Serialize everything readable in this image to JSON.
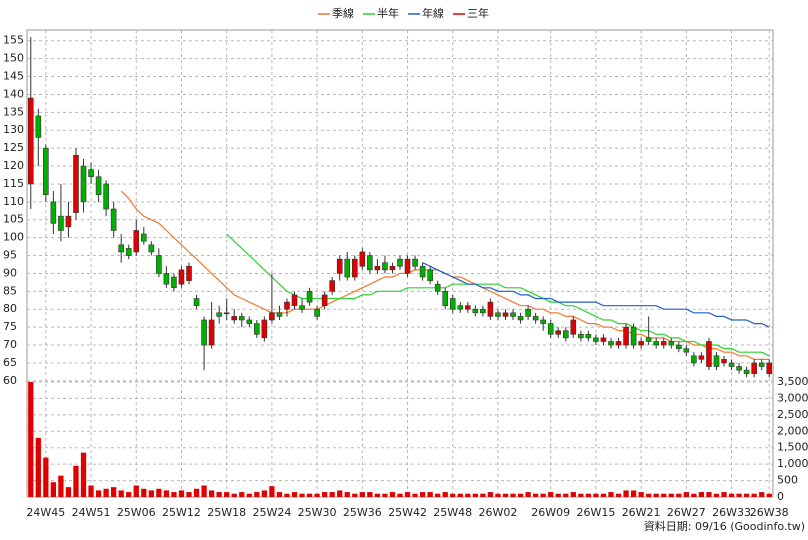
{
  "chart_data": {
    "type": "candlestick",
    "categories": [
      null,
      null,
      "24W45",
      null,
      null,
      null,
      null,
      null,
      "24W51",
      null,
      null,
      null,
      null,
      null,
      "25W06",
      null,
      null,
      null,
      null,
      null,
      "25W12",
      null,
      null,
      null,
      null,
      null,
      "25W18",
      null,
      null,
      null,
      null,
      null,
      "25W24",
      null,
      null,
      null,
      null,
      null,
      "25W30",
      null,
      null,
      null,
      null,
      null,
      "25W36",
      null,
      null,
      null,
      null,
      null,
      "25W42",
      null,
      null,
      null,
      null,
      null,
      "25W48",
      null,
      null,
      null,
      null,
      null,
      "26W02",
      null,
      null,
      null,
      null,
      null,
      null,
      "26W09",
      null,
      null,
      null,
      null,
      null,
      "26W15",
      null,
      null,
      null,
      null,
      null,
      "26W21",
      null,
      null,
      null,
      null,
      null,
      "26W27",
      null,
      null,
      null,
      null,
      null,
      "26W33",
      null,
      null,
      null,
      null,
      "26W38"
    ],
    "open": [
      115,
      134,
      125,
      110,
      106,
      103,
      107,
      120,
      119,
      117,
      115,
      108,
      98,
      97,
      96,
      101,
      98,
      95,
      90,
      89,
      87,
      88,
      83,
      77,
      70,
      79,
      79,
      77,
      78,
      77,
      76,
      72,
      77,
      79,
      80,
      81,
      81,
      85,
      80,
      81,
      85,
      90,
      94,
      89,
      92,
      95,
      91,
      93,
      91,
      94,
      90,
      94,
      92,
      91,
      87,
      85,
      83,
      81,
      80,
      80,
      80,
      78,
      79,
      78,
      79,
      78,
      80,
      78,
      77,
      76,
      73,
      74,
      73,
      73,
      73,
      72,
      71,
      71,
      70,
      70,
      75,
      70,
      72,
      71,
      70,
      71,
      70,
      69,
      67,
      66,
      64,
      67,
      65,
      65,
      64,
      63,
      62,
      65,
      62
    ],
    "high": [
      156,
      136,
      126,
      113,
      115,
      110,
      125,
      122,
      121,
      119,
      116,
      110,
      101,
      98,
      105,
      103,
      99,
      97,
      92,
      90,
      92,
      93,
      84,
      78,
      82,
      81,
      83,
      80,
      79,
      78,
      77,
      78,
      90,
      81,
      83,
      85,
      83,
      86,
      81,
      85,
      89,
      95,
      96,
      95,
      97,
      96,
      94,
      95,
      93,
      95,
      95,
      95,
      93,
      92,
      88,
      86,
      84,
      82,
      82,
      81,
      81,
      83,
      80,
      80,
      80,
      79,
      81,
      79,
      78,
      77,
      75,
      75,
      78,
      74,
      74,
      73,
      73,
      72,
      72,
      76,
      76,
      72,
      78,
      72,
      72,
      72,
      71,
      70,
      68,
      68,
      72,
      68,
      67,
      66,
      65,
      64,
      66,
      66,
      66
    ],
    "low": [
      108,
      120,
      110,
      101,
      99,
      100,
      105,
      107,
      115,
      110,
      106,
      100,
      93,
      94,
      95,
      98,
      95,
      89,
      86,
      85,
      86,
      87,
      80,
      63,
      69,
      76,
      77,
      76,
      75,
      75,
      72,
      71,
      76,
      77,
      78,
      80,
      79,
      81,
      77,
      80,
      84,
      88,
      88,
      88,
      91,
      90,
      90,
      90,
      90,
      91,
      89,
      91,
      88,
      87,
      84,
      80,
      79,
      79,
      79,
      78,
      78,
      77,
      77,
      77,
      77,
      76,
      77,
      76,
      74,
      72,
      72,
      71,
      72,
      71,
      71,
      70,
      70,
      69,
      69,
      69,
      69,
      69,
      70,
      69,
      69,
      69,
      68,
      67,
      64,
      65,
      63,
      63,
      64,
      63,
      62,
      61,
      61,
      63,
      61
    ],
    "close": [
      139,
      128,
      112,
      104,
      102,
      106,
      123,
      110,
      117,
      112,
      108,
      102,
      96,
      95,
      102,
      99,
      96,
      90,
      87,
      86,
      91,
      92,
      81,
      70,
      77,
      78,
      79,
      78,
      77,
      76,
      73,
      77,
      79,
      78,
      82,
      84,
      80,
      82,
      78,
      84,
      88,
      94,
      89,
      94,
      96,
      91,
      92,
      91,
      92,
      92,
      94,
      92,
      89,
      88,
      85,
      81,
      80,
      80,
      81,
      79,
      79,
      82,
      78,
      79,
      78,
      77,
      78,
      77,
      76,
      73,
      74,
      72,
      77,
      72,
      72,
      71,
      72,
      70,
      71,
      75,
      70,
      71,
      71,
      70,
      71,
      70,
      69,
      68,
      65,
      67,
      71,
      64,
      66,
      64,
      63,
      62,
      65,
      64,
      65
    ],
    "up_color": "#e00000",
    "down_color": "#00b000",
    "volume": {
      "color": "#e00000",
      "values": [
        3500,
        1800,
        1200,
        450,
        650,
        300,
        950,
        1350,
        350,
        200,
        250,
        300,
        200,
        150,
        350,
        250,
        200,
        250,
        200,
        150,
        200,
        150,
        250,
        350,
        200,
        150,
        150,
        100,
        150,
        100,
        150,
        200,
        330,
        150,
        100,
        150,
        100,
        100,
        100,
        150,
        150,
        200,
        150,
        100,
        150,
        150,
        100,
        100,
        150,
        100,
        150,
        100,
        150,
        150,
        100,
        150,
        100,
        100,
        100,
        100,
        100,
        150,
        100,
        100,
        100,
        100,
        150,
        100,
        100,
        150,
        100,
        100,
        150,
        100,
        100,
        100,
        100,
        150,
        100,
        200,
        200,
        150,
        100,
        100,
        100,
        100,
        100,
        150,
        100,
        150,
        150,
        100,
        150,
        100,
        100,
        100,
        100,
        150,
        100
      ]
    },
    "series": [
      {
        "name": "季線",
        "color": "#f07830",
        "values": [
          null,
          null,
          null,
          null,
          null,
          null,
          null,
          null,
          null,
          null,
          null,
          null,
          113,
          111,
          108,
          106,
          105,
          104,
          102,
          100,
          98,
          96,
          94,
          92,
          90,
          88,
          86,
          84,
          83,
          82,
          81,
          80,
          79,
          79,
          79,
          80,
          80,
          80,
          80,
          81,
          82,
          83,
          84,
          85,
          86,
          87,
          88,
          89,
          89,
          90,
          90,
          91,
          91,
          91,
          91,
          90,
          89,
          89,
          88,
          87,
          86,
          85,
          84,
          83,
          82,
          81,
          81,
          80,
          80,
          79,
          79,
          78,
          78,
          77,
          76,
          76,
          75,
          75,
          74,
          74,
          73,
          73,
          72,
          72,
          72,
          71,
          71,
          71,
          70,
          70,
          69,
          69,
          68,
          68,
          67,
          67,
          66,
          66,
          66
        ]
      },
      {
        "name": "半年",
        "color": "#30d030",
        "values": [
          null,
          null,
          null,
          null,
          null,
          null,
          null,
          null,
          null,
          null,
          null,
          null,
          null,
          null,
          null,
          null,
          null,
          null,
          null,
          null,
          null,
          null,
          null,
          null,
          null,
          null,
          101,
          99,
          97,
          95,
          93,
          91,
          89,
          87,
          85,
          84,
          83,
          83,
          83,
          83,
          83,
          83,
          83,
          83,
          84,
          84,
          85,
          85,
          85,
          85,
          86,
          86,
          86,
          86,
          86,
          86,
          87,
          87,
          87,
          87,
          87,
          87,
          87,
          86,
          86,
          86,
          85,
          84,
          83,
          82,
          82,
          81,
          81,
          80,
          79,
          78,
          77,
          77,
          76,
          76,
          75,
          74,
          74,
          73,
          73,
          72,
          72,
          71,
          71,
          70,
          70,
          70,
          69,
          69,
          68,
          68,
          68,
          68,
          67
        ]
      },
      {
        "name": "年線",
        "color": "#2060c8",
        "values": [
          null,
          null,
          null,
          null,
          null,
          null,
          null,
          null,
          null,
          null,
          null,
          null,
          null,
          null,
          null,
          null,
          null,
          null,
          null,
          null,
          null,
          null,
          null,
          null,
          null,
          null,
          null,
          null,
          null,
          null,
          null,
          null,
          null,
          null,
          null,
          null,
          null,
          null,
          null,
          null,
          null,
          null,
          null,
          null,
          null,
          null,
          null,
          null,
          null,
          null,
          null,
          null,
          93,
          92,
          91,
          90,
          89,
          88,
          87,
          87,
          86,
          86,
          85,
          85,
          85,
          84,
          84,
          83,
          83,
          83,
          82,
          82,
          82,
          82,
          82,
          82,
          81,
          81,
          81,
          81,
          81,
          81,
          81,
          81,
          80,
          80,
          80,
          80,
          79,
          79,
          79,
          78,
          78,
          77,
          77,
          77,
          76,
          76,
          75
        ]
      },
      {
        "name": "三年",
        "color": "#e00000",
        "values": [
          null,
          null,
          null,
          null,
          null,
          null,
          null,
          null,
          null,
          null,
          null,
          null,
          null,
          null,
          null,
          null,
          null,
          null,
          null,
          null,
          null,
          null,
          null,
          null,
          null,
          null,
          null,
          null,
          null,
          null,
          null,
          null,
          null,
          null,
          null,
          null,
          null,
          null,
          null,
          null,
          null,
          null,
          null,
          null,
          null,
          null,
          null,
          null,
          null,
          null,
          null,
          null,
          null,
          null,
          null,
          null,
          null,
          null,
          null,
          null,
          null,
          null,
          null,
          null,
          null,
          null,
          null,
          null,
          null,
          null,
          null,
          null,
          null,
          null,
          null,
          null,
          null,
          null,
          null,
          null,
          null,
          null,
          null,
          null,
          null,
          null,
          null,
          null,
          null,
          null,
          null,
          null,
          null,
          null,
          null,
          null,
          null,
          null,
          null
        ]
      }
    ],
    "ylim": [
      58,
      158
    ],
    "yticks": [
      60,
      65,
      70,
      75,
      80,
      85,
      90,
      95,
      100,
      105,
      110,
      115,
      120,
      125,
      130,
      135,
      140,
      145,
      150,
      155
    ],
    "y2lim": [
      0,
      3500
    ],
    "y2ticks": [
      0,
      500,
      {
        "value": 1000,
        "label": "1,000"
      },
      {
        "value": 1500,
        "label": "1,500"
      },
      {
        "value": 2000,
        "label": "2,000"
      },
      {
        "value": 2500,
        "label": "2,500"
      },
      {
        "value": 3000,
        "label": "3,000"
      },
      {
        "value": 3500,
        "label": "3,500"
      }
    ],
    "grid": true,
    "footnote": "資料日期: 09/16  (Goodinfo.tw)"
  }
}
